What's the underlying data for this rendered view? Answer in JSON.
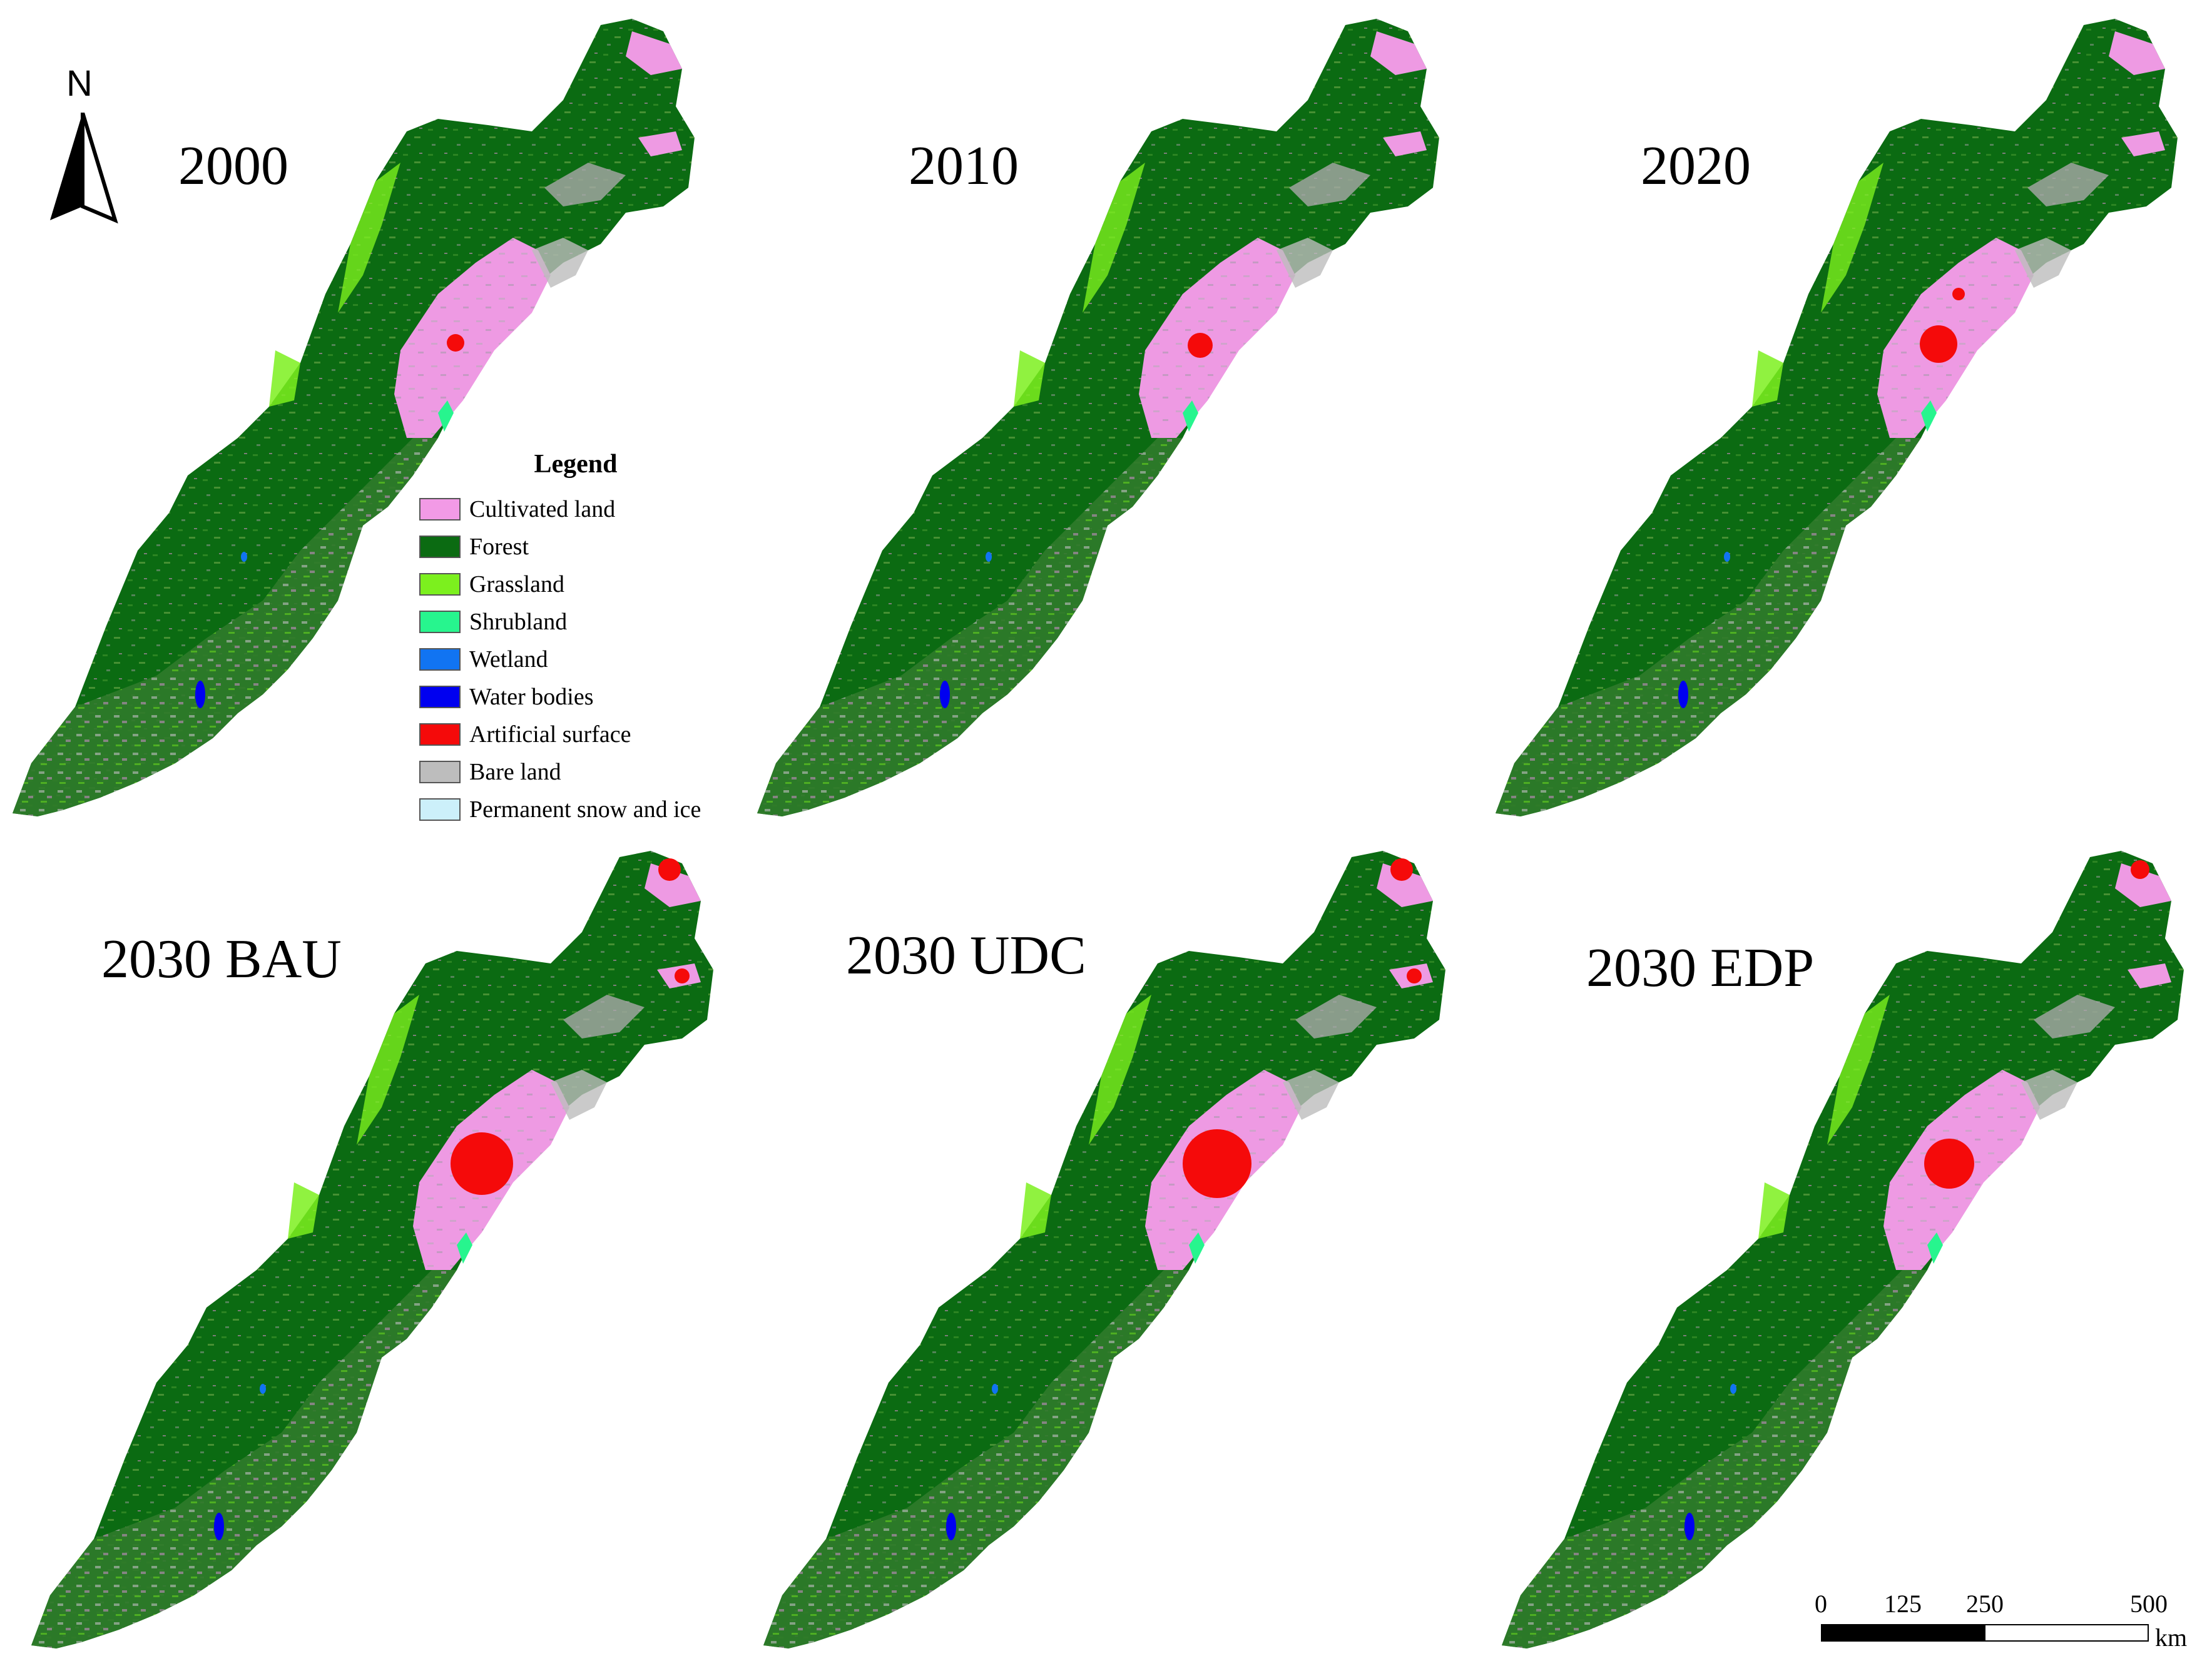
{
  "panels": [
    {
      "title": "2000"
    },
    {
      "title": "2010"
    },
    {
      "title": "2020"
    },
    {
      "title": "2030 BAU"
    },
    {
      "title": "2030 UDC"
    },
    {
      "title": "2030 EDP"
    }
  ],
  "legend": {
    "title": "Legend",
    "items": [
      {
        "label": "Cultivated land",
        "color": "#f29ae6"
      },
      {
        "label": "Forest",
        "color": "#0b6b12"
      },
      {
        "label": "Grassland",
        "color": "#7cf01e"
      },
      {
        "label": "Shrubland",
        "color": "#27f58e"
      },
      {
        "label": "Wetland",
        "color": "#1174f2"
      },
      {
        "label": "Water bodies",
        "color": "#0000f0"
      },
      {
        "label": "Artificial surface",
        "color": "#f50a0a"
      },
      {
        "label": "Bare land",
        "color": "#bdbdbd"
      },
      {
        "label": "Permanent snow and ice",
        "color": "#ccf0fa"
      }
    ]
  },
  "north_arrow": {
    "label": "N"
  },
  "scale_bar": {
    "ticks": [
      "0",
      "125",
      "250",
      "500"
    ],
    "unit": "km"
  }
}
